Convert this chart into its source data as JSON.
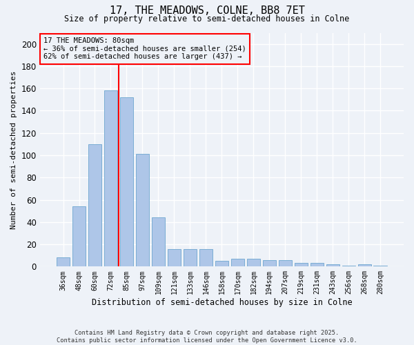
{
  "title": "17, THE MEADOWS, COLNE, BB8 7ET",
  "subtitle": "Size of property relative to semi-detached houses in Colne",
  "xlabel": "Distribution of semi-detached houses by size in Colne",
  "ylabel": "Number of semi-detached properties",
  "categories": [
    "36sqm",
    "48sqm",
    "60sqm",
    "72sqm",
    "85sqm",
    "97sqm",
    "109sqm",
    "121sqm",
    "133sqm",
    "146sqm",
    "158sqm",
    "170sqm",
    "182sqm",
    "194sqm",
    "207sqm",
    "219sqm",
    "231sqm",
    "243sqm",
    "256sqm",
    "268sqm",
    "280sqm"
  ],
  "values": [
    8,
    54,
    110,
    158,
    152,
    101,
    44,
    16,
    16,
    16,
    5,
    7,
    7,
    6,
    6,
    3,
    3,
    2,
    1,
    2,
    1
  ],
  "bar_color": "#aec6e8",
  "bar_edge_color": "#7aadd4",
  "redline_index": 3,
  "ylim": [
    0,
    210
  ],
  "yticks": [
    0,
    20,
    40,
    60,
    80,
    100,
    120,
    140,
    160,
    180,
    200
  ],
  "annotation_title": "17 THE MEADOWS: 80sqm",
  "annotation_line1": "← 36% of semi-detached houses are smaller (254)",
  "annotation_line2": "62% of semi-detached houses are larger (437) →",
  "footer1": "Contains HM Land Registry data © Crown copyright and database right 2025.",
  "footer2": "Contains public sector information licensed under the Open Government Licence v3.0.",
  "bg_color": "#eef2f8"
}
